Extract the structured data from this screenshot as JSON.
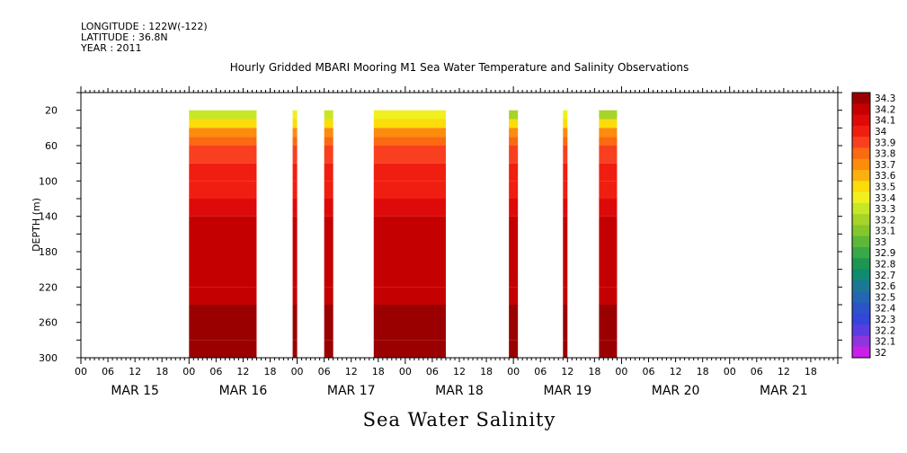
{
  "header": {
    "longitude": "LONGITUDE : 122W(-122)",
    "latitude": "LATITUDE : 36.8N",
    "year": "YEAR : 2011"
  },
  "chart_data": {
    "type": "heatmap",
    "title": "Hourly Gridded MBARI Mooring M1 Sea Water Temperature and Salinity Observations",
    "xlabel": "",
    "ylabel": "DEPTH (m)",
    "footer": "Sea Water Salinity",
    "x_hours": [
      0,
      168
    ],
    "hour_ticks": [
      "00",
      "06",
      "12",
      "18",
      "00",
      "06",
      "12",
      "18",
      "00",
      "06",
      "12",
      "18",
      "00",
      "06",
      "12",
      "18",
      "00",
      "06",
      "12",
      "18",
      "00",
      "06",
      "12",
      "18",
      "00",
      "06",
      "12",
      "18"
    ],
    "day_labels": [
      "MAR 15",
      "MAR 16",
      "MAR 17",
      "MAR 18",
      "MAR 19",
      "MAR 20",
      "MAR 21"
    ],
    "ylim": [
      300,
      0
    ],
    "y_ticks": [
      "20",
      "60",
      "100",
      "140",
      "180",
      "220",
      "260",
      "300"
    ],
    "colorbar": {
      "labels": [
        "34.3",
        "34.2",
        "34.1",
        "34",
        "33.9",
        "33.8",
        "33.7",
        "33.6",
        "33.5",
        "33.4",
        "33.3",
        "33.2",
        "33.1",
        "33",
        "32.9",
        "32.8",
        "32.7",
        "32.6",
        "32.5",
        "32.4",
        "32.3",
        "32.2",
        "32.1",
        "32"
      ],
      "colors": [
        "#9b0000",
        "#c40000",
        "#de0a0a",
        "#f01e10",
        "#f84020",
        "#fa6a10",
        "#fb8c0c",
        "#fcb010",
        "#fcdc0a",
        "#f0f020",
        "#c8e628",
        "#a6d428",
        "#84c62c",
        "#5cb838",
        "#38a848",
        "#1c9650",
        "#108a70",
        "#1a7894",
        "#2466b0",
        "#2c54c8",
        "#3446da",
        "#5a3ce0",
        "#9034dc",
        "#c820e8"
      ]
    },
    "segments": [
      {
        "start": 24,
        "end": 39,
        "surface": 33.3,
        "bottom": 34.2
      },
      {
        "start": 47,
        "end": 48,
        "surface": 33.4,
        "bottom": 34.2
      },
      {
        "start": 54,
        "end": 56,
        "surface": 33.3,
        "bottom": 34.2
      },
      {
        "start": 65,
        "end": 81,
        "surface": 33.4,
        "bottom": 34.2
      },
      {
        "start": 95,
        "end": 97,
        "surface": 33.2,
        "bottom": 34.2
      },
      {
        "start": 107,
        "end": 108,
        "surface": 33.4,
        "bottom": 34.2
      },
      {
        "start": 115,
        "end": 119,
        "surface": 33.2,
        "bottom": 34.2
      }
    ],
    "depth_profile": [
      {
        "depth": 20,
        "salinity": 33.4
      },
      {
        "depth": 30,
        "salinity": 33.5
      },
      {
        "depth": 40,
        "salinity": 33.7
      },
      {
        "depth": 50,
        "salinity": 33.8
      },
      {
        "depth": 60,
        "salinity": 33.9
      },
      {
        "depth": 80,
        "salinity": 34.0
      },
      {
        "depth": 100,
        "salinity": 34.0
      },
      {
        "depth": 120,
        "salinity": 34.1
      },
      {
        "depth": 140,
        "salinity": 34.2
      },
      {
        "depth": 220,
        "salinity": 34.2
      },
      {
        "depth": 240,
        "salinity": 34.3
      },
      {
        "depth": 280,
        "salinity": 34.3
      },
      {
        "depth": 300,
        "salinity": 34.2
      }
    ]
  }
}
